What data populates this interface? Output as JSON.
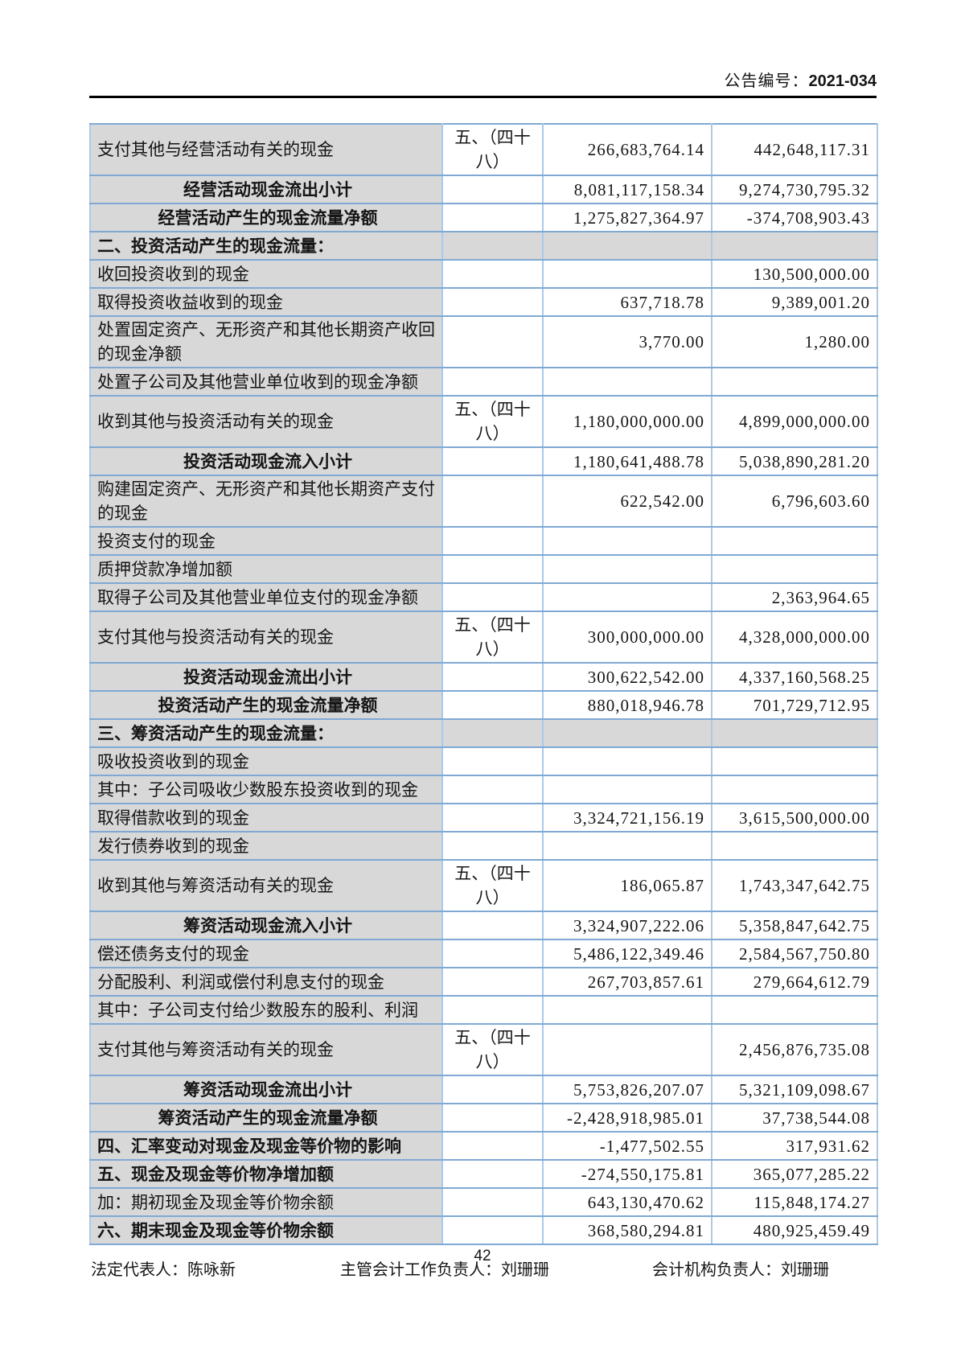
{
  "header": {
    "notice_label": "公告编号：",
    "notice_number": "2021-034"
  },
  "colors": {
    "row_shade": "#d8d8d8",
    "border_horizontal": "#7fa9d4",
    "border_vertical": "#adc9e6",
    "rule": "#000000"
  },
  "table": {
    "rows": [
      {
        "type": "item",
        "label": "支付其他与经营活动有关的现金",
        "note": "五、（四十八）",
        "current": "266,683,764.14",
        "prior": "442,648,117.31"
      },
      {
        "type": "subtotal",
        "label": "经营活动现金流出小计",
        "note": "",
        "current": "8,081,117,158.34",
        "prior": "9,274,730,795.32"
      },
      {
        "type": "subtotal",
        "label": "经营活动产生的现金流量净额",
        "note": "",
        "current": "1,275,827,364.97",
        "prior": "-374,708,903.43"
      },
      {
        "type": "section",
        "label": "二、投资活动产生的现金流量：",
        "note": "",
        "current": "",
        "prior": ""
      },
      {
        "type": "item",
        "label": "收回投资收到的现金",
        "note": "",
        "current": "",
        "prior": "130,500,000.00"
      },
      {
        "type": "item",
        "label": "取得投资收益收到的现金",
        "note": "",
        "current": "637,718.78",
        "prior": "9,389,001.20"
      },
      {
        "type": "item",
        "label": "处置固定资产、无形资产和其他长期资产收回的现金净额",
        "note": "",
        "current": "3,770.00",
        "prior": "1,280.00"
      },
      {
        "type": "item",
        "label": "处置子公司及其他营业单位收到的现金净额",
        "note": "",
        "current": "",
        "prior": ""
      },
      {
        "type": "item",
        "label": "收到其他与投资活动有关的现金",
        "note": "五、（四十八）",
        "current": "1,180,000,000.00",
        "prior": "4,899,000,000.00"
      },
      {
        "type": "subtotal",
        "label": "投资活动现金流入小计",
        "note": "",
        "current": "1,180,641,488.78",
        "prior": "5,038,890,281.20"
      },
      {
        "type": "item",
        "label": "购建固定资产、无形资产和其他长期资产支付的现金",
        "note": "",
        "current": "622,542.00",
        "prior": "6,796,603.60"
      },
      {
        "type": "item",
        "label": "投资支付的现金",
        "note": "",
        "current": "",
        "prior": ""
      },
      {
        "type": "item",
        "label": "质押贷款净增加额",
        "note": "",
        "current": "",
        "prior": ""
      },
      {
        "type": "item",
        "label": "取得子公司及其他营业单位支付的现金净额",
        "note": "",
        "current": "",
        "prior": "2,363,964.65"
      },
      {
        "type": "item",
        "label": "支付其他与投资活动有关的现金",
        "note": "五、（四十八）",
        "current": "300,000,000.00",
        "prior": "4,328,000,000.00"
      },
      {
        "type": "subtotal",
        "label": "投资活动现金流出小计",
        "note": "",
        "current": "300,622,542.00",
        "prior": "4,337,160,568.25"
      },
      {
        "type": "subtotal",
        "label": "投资活动产生的现金流量净额",
        "note": "",
        "current": "880,018,946.78",
        "prior": "701,729,712.95"
      },
      {
        "type": "section",
        "label": "三、筹资活动产生的现金流量：",
        "note": "",
        "current": "",
        "prior": ""
      },
      {
        "type": "item",
        "label": "吸收投资收到的现金",
        "note": "",
        "current": "",
        "prior": ""
      },
      {
        "type": "item",
        "label": "其中：子公司吸收少数股东投资收到的现金",
        "note": "",
        "current": "",
        "prior": ""
      },
      {
        "type": "item",
        "label": "取得借款收到的现金",
        "note": "",
        "current": "3,324,721,156.19",
        "prior": "3,615,500,000.00"
      },
      {
        "type": "item",
        "label": "发行债券收到的现金",
        "note": "",
        "current": "",
        "prior": ""
      },
      {
        "type": "item",
        "label": "收到其他与筹资活动有关的现金",
        "note": "五、（四十八）",
        "current": "186,065.87",
        "prior": "1,743,347,642.75"
      },
      {
        "type": "subtotal",
        "label": "筹资活动现金流入小计",
        "note": "",
        "current": "3,324,907,222.06",
        "prior": "5,358,847,642.75"
      },
      {
        "type": "item",
        "label": "偿还债务支付的现金",
        "note": "",
        "current": "5,486,122,349.46",
        "prior": "2,584,567,750.80"
      },
      {
        "type": "item",
        "label": "分配股利、利润或偿付利息支付的现金",
        "note": "",
        "current": "267,703,857.61",
        "prior": "279,664,612.79"
      },
      {
        "type": "item",
        "label": "其中：子公司支付给少数股东的股利、利润",
        "note": "",
        "current": "",
        "prior": ""
      },
      {
        "type": "item",
        "label": "支付其他与筹资活动有关的现金",
        "note": "五、（四十八）",
        "current": "",
        "prior": "2,456,876,735.08"
      },
      {
        "type": "subtotal",
        "label": "筹资活动现金流出小计",
        "note": "",
        "current": "5,753,826,207.07",
        "prior": "5,321,109,098.67"
      },
      {
        "type": "subtotal",
        "label": "筹资活动产生的现金流量净额",
        "note": "",
        "current": "-2,428,918,985.01",
        "prior": "37,738,544.08"
      },
      {
        "type": "bold",
        "label": "四、汇率变动对现金及现金等价物的影响",
        "note": "",
        "current": "-1,477,502.55",
        "prior": "317,931.62"
      },
      {
        "type": "bold",
        "label": "五、现金及现金等价物净增加额",
        "note": "",
        "current": "-274,550,175.81",
        "prior": "365,077,285.22"
      },
      {
        "type": "item",
        "label": "加：期初现金及现金等价物余额",
        "note": "",
        "current": "643,130,470.62",
        "prior": "115,848,174.27"
      },
      {
        "type": "bold",
        "label": "六、期末现金及现金等价物余额",
        "note": "",
        "current": "368,580,294.81",
        "prior": "480,925,459.49"
      }
    ]
  },
  "signatures": {
    "legal_representative": "法定代表人：陈咏新",
    "chief_accounting_officer": "主管会计工作负责人：刘珊珊",
    "accounting_department_head": "会计机构负责人：刘珊珊"
  },
  "footer": {
    "page_number": "42"
  }
}
